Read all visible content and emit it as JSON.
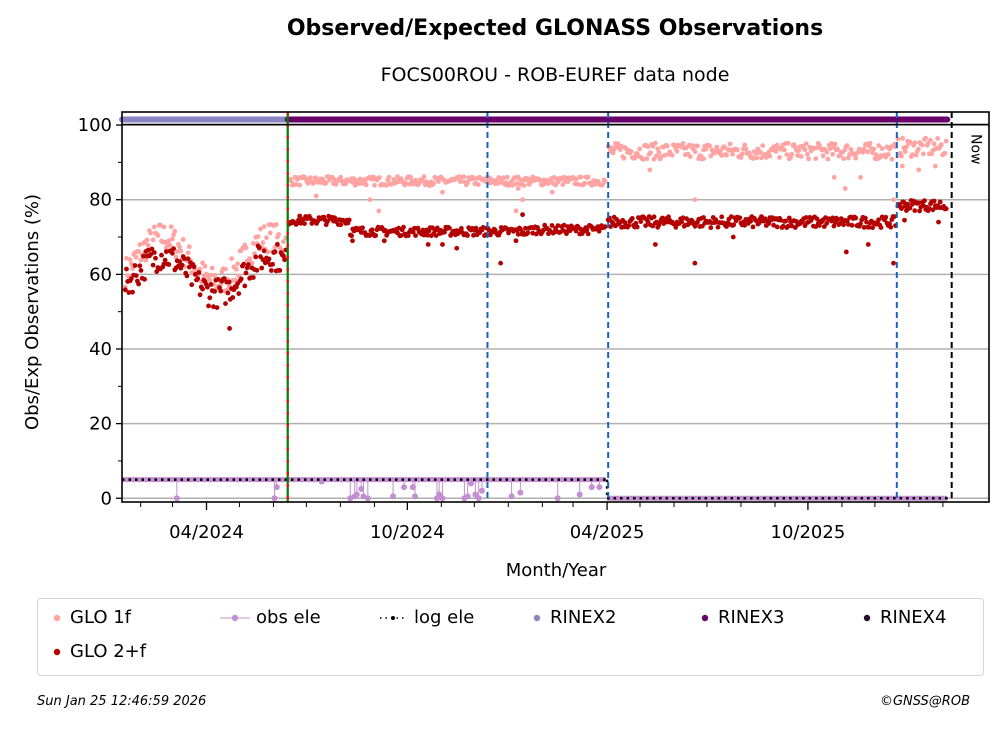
{
  "chart_data": {
    "type": "scatter",
    "title": "Observed/Expected GLONASS Observations",
    "subtitle": "FOCS00ROU - ROB-EUREF data node",
    "xlabel": "Month/Year",
    "ylabel": "Obs/Exp Observations (%)",
    "x_range": [
      "2024-01-15",
      "2026-03-15"
    ],
    "ylim": [
      -1,
      103.5
    ],
    "y_ticks": [
      0,
      20,
      40,
      60,
      80,
      100
    ],
    "y_minor_ticks": [
      10,
      30,
      50,
      70,
      90
    ],
    "x_major_ticks": [
      {
        "date": "2024-04-01",
        "label": "04/2024"
      },
      {
        "date": "2024-10-01",
        "label": "10/2024"
      },
      {
        "date": "2025-04-01",
        "label": "04/2025"
      },
      {
        "date": "2025-10-01",
        "label": "10/2025"
      }
    ],
    "x_minor_ticks": [
      "2024-02-01",
      "2024-03-01",
      "2024-05-01",
      "2024-06-01",
      "2024-07-01",
      "2024-08-01",
      "2024-09-01",
      "2024-11-01",
      "2024-12-01",
      "2025-01-01",
      "2025-02-01",
      "2025-03-01",
      "2025-05-01",
      "2025-06-01",
      "2025-07-01",
      "2025-08-01",
      "2025-09-01",
      "2025-11-01",
      "2025-12-01",
      "2026-01-01",
      "2026-02-01"
    ],
    "grid": "y-major",
    "legend_placement": "bottom",
    "series": [
      {
        "name": "GLO 1f",
        "color": "#ffa3a3",
        "marker": "dot",
        "segments": [
          {
            "start": "2024-01-18",
            "end": "2024-06-13",
            "shape": "wave",
            "base": 64,
            "amp": 6,
            "spread": 4
          },
          {
            "start": "2024-06-15",
            "end": "2025-03-31",
            "base": 85,
            "spread": 1.2,
            "outliers": [
              [
                "2024-07-10",
                81
              ],
              [
                "2024-08-28",
                80
              ],
              [
                "2024-09-05",
                77
              ],
              [
                "2024-11-02",
                82
              ],
              [
                "2025-01-08",
                77
              ],
              [
                "2025-01-10",
                83
              ],
              [
                "2025-01-14",
                80
              ],
              [
                "2025-02-10",
                82
              ]
            ]
          },
          {
            "start": "2025-04-02",
            "end": "2025-12-20",
            "base": 93,
            "spread": 2.2,
            "outliers": [
              [
                "2025-05-10",
                88
              ],
              [
                "2025-06-20",
                80
              ],
              [
                "2025-06-28",
                91
              ],
              [
                "2025-10-25",
                86
              ],
              [
                "2025-11-04",
                83
              ],
              [
                "2025-11-18",
                86
              ],
              [
                "2025-12-18",
                80
              ]
            ]
          },
          {
            "start": "2025-12-22",
            "end": "2026-02-05",
            "base": 94,
            "spread": 2.5,
            "outliers": [
              [
                "2025-12-26",
                89
              ],
              [
                "2026-01-10",
                88
              ],
              [
                "2026-01-25",
                89
              ]
            ]
          }
        ]
      },
      {
        "name": "GLO 2+f",
        "color": "#b30000",
        "marker": "dot",
        "segments": [
          {
            "start": "2024-01-18",
            "end": "2024-06-13",
            "shape": "wave",
            "base": 60,
            "amp": 5,
            "spread": 4,
            "outliers": [
              [
                "2024-04-22",
                45.5
              ]
            ]
          },
          {
            "start": "2024-06-15",
            "end": "2025-03-31",
            "base": 72,
            "spread": 1.2,
            "steps": [
              [
                "2024-06-15",
                74.5
              ],
              [
                "2024-08-10",
                71.5
              ],
              [
                "2025-01-20",
                72
              ]
            ],
            "outliers": [
              [
                "2024-08-12",
                69
              ],
              [
                "2024-09-10",
                69
              ],
              [
                "2024-10-20",
                68
              ],
              [
                "2024-11-02",
                68
              ],
              [
                "2024-11-15",
                67
              ],
              [
                "2024-12-25",
                63
              ],
              [
                "2025-01-08",
                69
              ],
              [
                "2025-01-14",
                76
              ]
            ]
          },
          {
            "start": "2025-04-02",
            "end": "2025-12-20",
            "base": 74,
            "spread": 1.5,
            "outliers": [
              [
                "2025-05-15",
                68
              ],
              [
                "2025-06-20",
                63
              ],
              [
                "2025-07-25",
                70
              ],
              [
                "2025-11-05",
                66
              ],
              [
                "2025-11-25",
                68
              ],
              [
                "2025-12-18",
                63
              ]
            ]
          },
          {
            "start": "2025-12-22",
            "end": "2026-02-05",
            "base": 78.5,
            "spread": 1.5,
            "outliers": [
              [
                "2025-12-28",
                74.5
              ],
              [
                "2026-01-28",
                74
              ]
            ]
          }
        ]
      },
      {
        "name": "obs ele",
        "color": "#c48fd1",
        "marker": "dot-line",
        "segments": [
          {
            "start": "2024-01-15",
            "end": "2025-03-31",
            "value": 5,
            "drops": [
              [
                "2024-03-05",
                0
              ],
              [
                "2024-06-02",
                0
              ],
              [
                "2024-06-04",
                3
              ],
              [
                "2024-07-15",
                4.5
              ],
              [
                "2024-08-10",
                0
              ],
              [
                "2024-08-14",
                0.5
              ],
              [
                "2024-08-16",
                1
              ],
              [
                "2024-08-20",
                2.5
              ],
              [
                "2024-08-22",
                0.5
              ],
              [
                "2024-08-26",
                0
              ],
              [
                "2024-09-18",
                0.5
              ],
              [
                "2024-09-28",
                3
              ],
              [
                "2024-10-06",
                3
              ],
              [
                "2024-10-08",
                0.5
              ],
              [
                "2024-10-28",
                0
              ],
              [
                "2024-10-30",
                1
              ],
              [
                "2024-11-02",
                0
              ],
              [
                "2024-11-22",
                0
              ],
              [
                "2024-11-25",
                0.5
              ],
              [
                "2024-11-28",
                4
              ],
              [
                "2024-12-02",
                1
              ],
              [
                "2024-12-05",
                0
              ],
              [
                "2024-12-08",
                2
              ],
              [
                "2025-01-04",
                0.5
              ],
              [
                "2025-01-12",
                1.5
              ],
              [
                "2025-02-15",
                0
              ],
              [
                "2025-03-07",
                1
              ],
              [
                "2025-03-18",
                3
              ],
              [
                "2025-03-25",
                3
              ]
            ]
          },
          {
            "start": "2025-04-01",
            "end": "2026-02-05",
            "value": 0
          }
        ]
      },
      {
        "name": "log ele",
        "color": "#000000",
        "marker": "dotted-line",
        "segments": [
          {
            "start": "2024-01-15",
            "end": "2025-04-01",
            "value": 5
          },
          {
            "start": "2025-04-01",
            "end": "2026-02-09",
            "value": 0
          }
        ]
      },
      {
        "name": "RINEX2",
        "color": "#8a86c2",
        "marker": "bar-top",
        "start": "2024-01-15",
        "end": "2024-06-14",
        "value": 101.5
      },
      {
        "name": "RINEX3",
        "color": "#6a006a",
        "marker": "bar-top",
        "start": "2024-06-14",
        "end": "2026-02-05",
        "value": 101.5
      },
      {
        "name": "RINEX4",
        "color": "#2a0a2a",
        "marker": "bar-top",
        "start": null,
        "end": null,
        "value": 101.5
      }
    ],
    "vertical_markers": [
      {
        "date": "2024-06-14",
        "style": "green-red-dashed",
        "color": "#008000",
        "color2": "#ff0000"
      },
      {
        "date": "2024-12-13",
        "style": "dashed",
        "color": "#1565c0"
      },
      {
        "date": "2025-04-02",
        "style": "dashed",
        "color": "#1565c0"
      },
      {
        "date": "2025-12-21",
        "style": "dashed",
        "color": "#1565c0"
      },
      {
        "date": "2026-02-09",
        "style": "dashed",
        "color": "#000000",
        "label": "Now"
      }
    ]
  },
  "legend": {
    "items": [
      {
        "label": "GLO 1f",
        "type": "dot",
        "color": "#ffa3a3"
      },
      {
        "label": "obs ele",
        "type": "dot-line",
        "color": "#c48fd1"
      },
      {
        "label": "log ele",
        "type": "dotted-line",
        "color": "#000000"
      },
      {
        "label": "RINEX2",
        "type": "dot",
        "color": "#8a86c2"
      },
      {
        "label": "RINEX3",
        "type": "dot",
        "color": "#6a006a"
      },
      {
        "label": "RINEX4",
        "type": "dot",
        "color": "#2a0a2a"
      },
      {
        "label": "GLO 2+f",
        "type": "dot",
        "color": "#b30000"
      }
    ]
  },
  "footer": {
    "timestamp": "Sun Jan 25 12:46:59 2026",
    "copyright": "©GNSS@ROB"
  }
}
